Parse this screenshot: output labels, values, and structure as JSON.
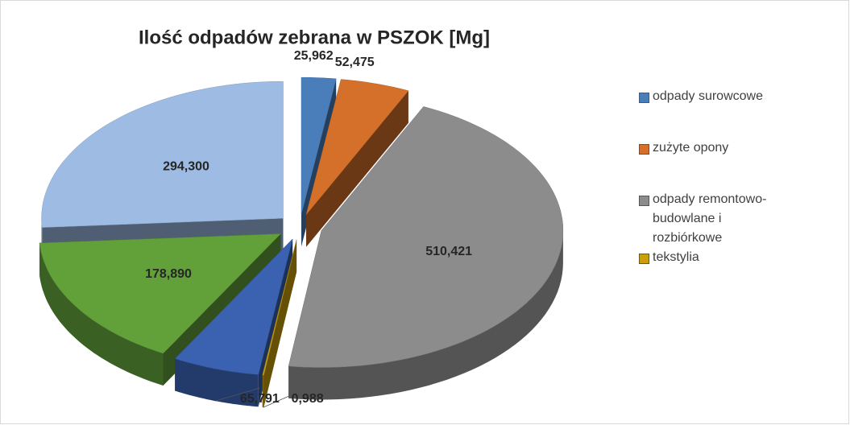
{
  "chart_data": {
    "type": "pie3d",
    "title": "Ilość odpadów zebrana w PSZOK [Mg]",
    "categories": [
      "odpady surowcowe",
      "zużyte opony",
      "odpady remontowo-budowlane i rozbiórkowe",
      "tekstylia",
      null,
      null,
      null
    ],
    "values": [
      25.962,
      52.475,
      510.421,
      0.988,
      65.791,
      178.89,
      294.3
    ],
    "value_labels": [
      "25,962",
      "52,475",
      "510,421",
      "0,988",
      "65,791",
      "178,890",
      "294,300"
    ],
    "colors": [
      "#4a7ebb",
      "#d4702a",
      "#8c8c8c",
      "#c9a00c",
      "#3a62b0",
      "#62a03a",
      "#9dbbe3"
    ],
    "legend": "right"
  }
}
